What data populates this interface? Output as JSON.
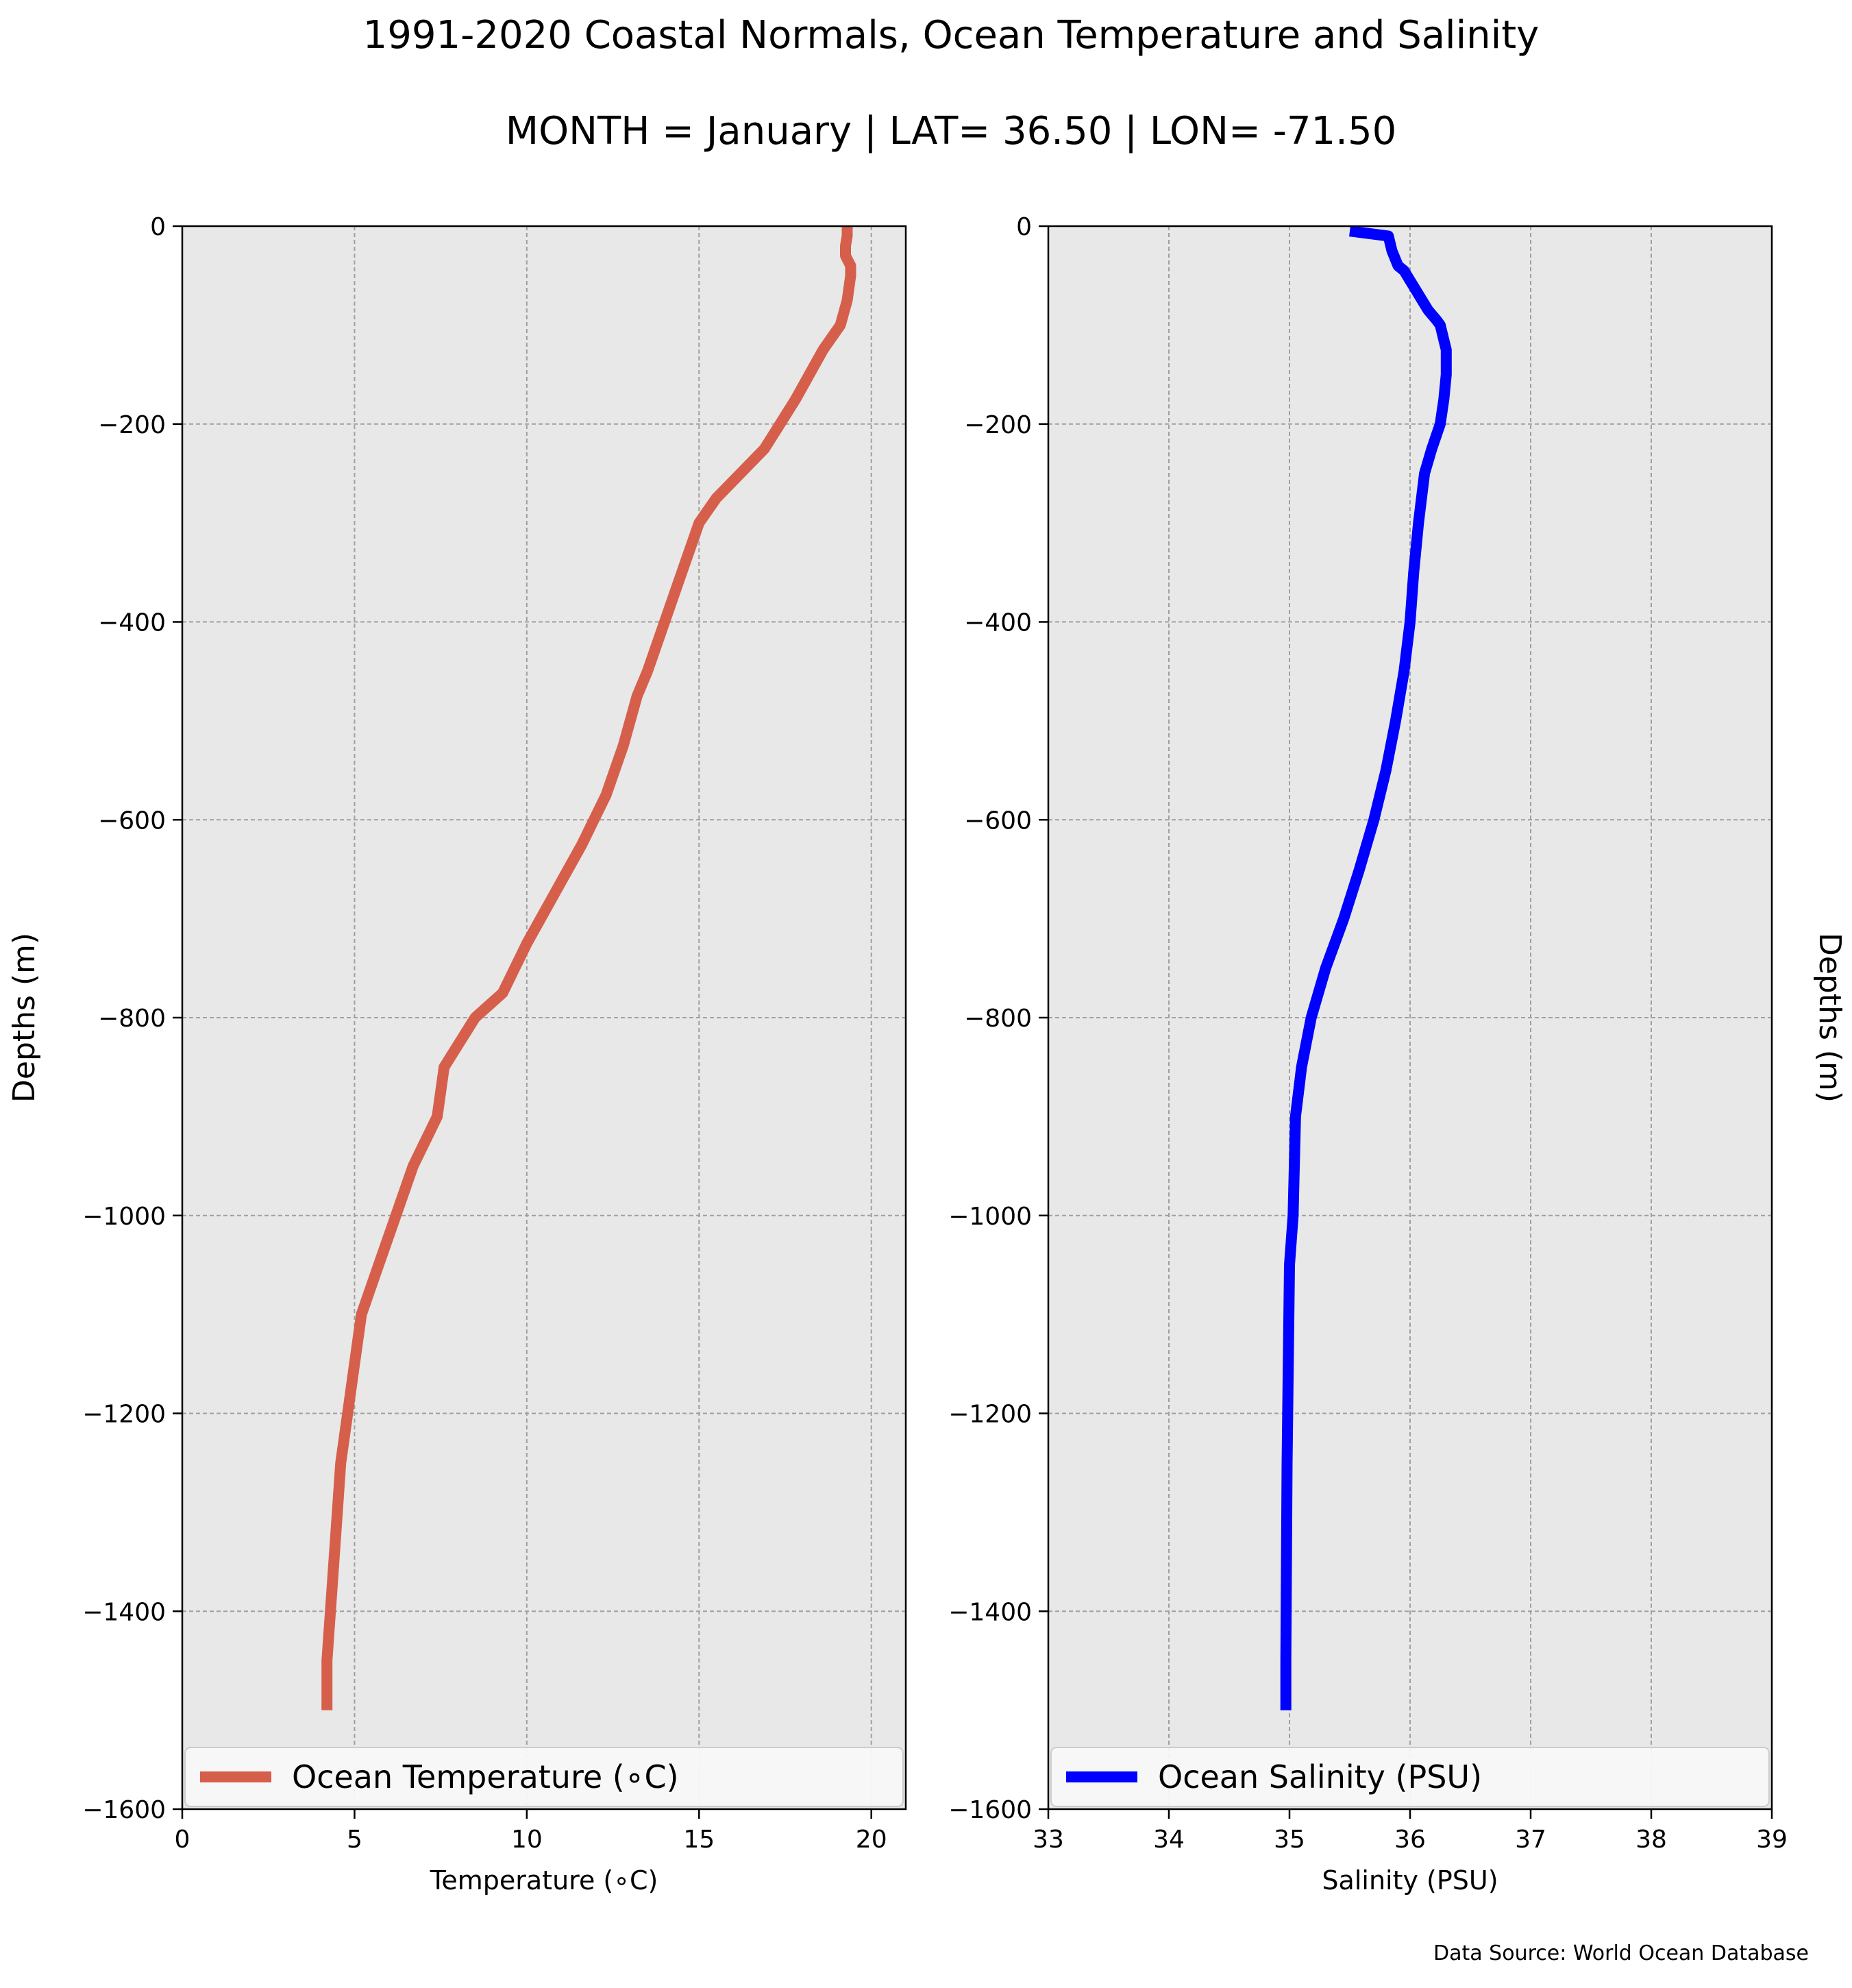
{
  "title": "1991-2020 Coastal Normals, Ocean Temperature and Salinity",
  "subtitle": "MONTH = January | LAT= 36.50 | LON= -71.50",
  "source": "Data Source: World Ocean Database",
  "chart_data": [
    {
      "type": "line",
      "xlabel": "Temperature (∘C)",
      "ylabel": "Depths (m)",
      "xlim": [
        0,
        21
      ],
      "ylim": [
        -1600,
        0
      ],
      "xticks": [
        0,
        5,
        10,
        15,
        20
      ],
      "yticks": [
        0,
        -200,
        -400,
        -600,
        -800,
        -1000,
        -1200,
        -1400,
        -1600
      ],
      "grid": true,
      "legend_position": "lower-center",
      "series": [
        {
          "name": "Ocean Temperature (∘C)",
          "color": "#d65f4c",
          "x": [
            19.3,
            19.3,
            19.25,
            19.25,
            19.4,
            19.4,
            19.3,
            19.1,
            18.6,
            17.8,
            16.9,
            16.2,
            15.5,
            15.0,
            14.5,
            14.0,
            13.5,
            13.2,
            12.8,
            12.3,
            11.6,
            10.8,
            10.0,
            9.3,
            8.5,
            7.6,
            7.4,
            6.7,
            6.2,
            5.7,
            5.2,
            5.0,
            4.8,
            4.6,
            4.5,
            4.4,
            4.2,
            4.2
          ],
          "y": [
            0,
            -10,
            -20,
            -30,
            -40,
            -50,
            -75,
            -100,
            -125,
            -175,
            -225,
            -250,
            -275,
            -300,
            -350,
            -400,
            -450,
            -475,
            -525,
            -575,
            -625,
            -675,
            -725,
            -775,
            -800,
            -850,
            -900,
            -950,
            -1000,
            -1050,
            -1100,
            -1150,
            -1200,
            -1250,
            -1300,
            -1350,
            -1450,
            -1500
          ]
        }
      ]
    },
    {
      "type": "line",
      "xlabel": "Salinity (PSU)",
      "ylabel": "Depths (m)",
      "xlim": [
        33,
        39
      ],
      "ylim": [
        -1600,
        0
      ],
      "xticks": [
        33,
        34,
        35,
        36,
        37,
        38,
        39
      ],
      "yticks": [
        0,
        -200,
        -400,
        -600,
        -800,
        -1000,
        -1200,
        -1400,
        -1600
      ],
      "grid": true,
      "legend_position": "lower-center",
      "series": [
        {
          "name": "Ocean Salinity (PSU)",
          "color": "#0000ff",
          "x": [
            35.5,
            35.82,
            35.85,
            35.9,
            35.95,
            36.0,
            36.05,
            36.1,
            36.15,
            36.22,
            36.25,
            36.3,
            36.3,
            36.28,
            36.25,
            36.18,
            36.12,
            36.07,
            36.03,
            36.0,
            35.95,
            35.88,
            35.8,
            35.7,
            35.58,
            35.45,
            35.3,
            35.18,
            35.1,
            35.05,
            35.03,
            35.0,
            34.98,
            34.97,
            34.97
          ],
          "y": [
            -5,
            -10,
            -25,
            -40,
            -45,
            -55,
            -65,
            -75,
            -85,
            -95,
            -100,
            -125,
            -150,
            -175,
            -200,
            -225,
            -250,
            -300,
            -350,
            -400,
            -450,
            -500,
            -550,
            -600,
            -650,
            -700,
            -750,
            -800,
            -850,
            -900,
            -1000,
            -1050,
            -1250,
            -1450,
            -1500
          ]
        }
      ]
    }
  ]
}
